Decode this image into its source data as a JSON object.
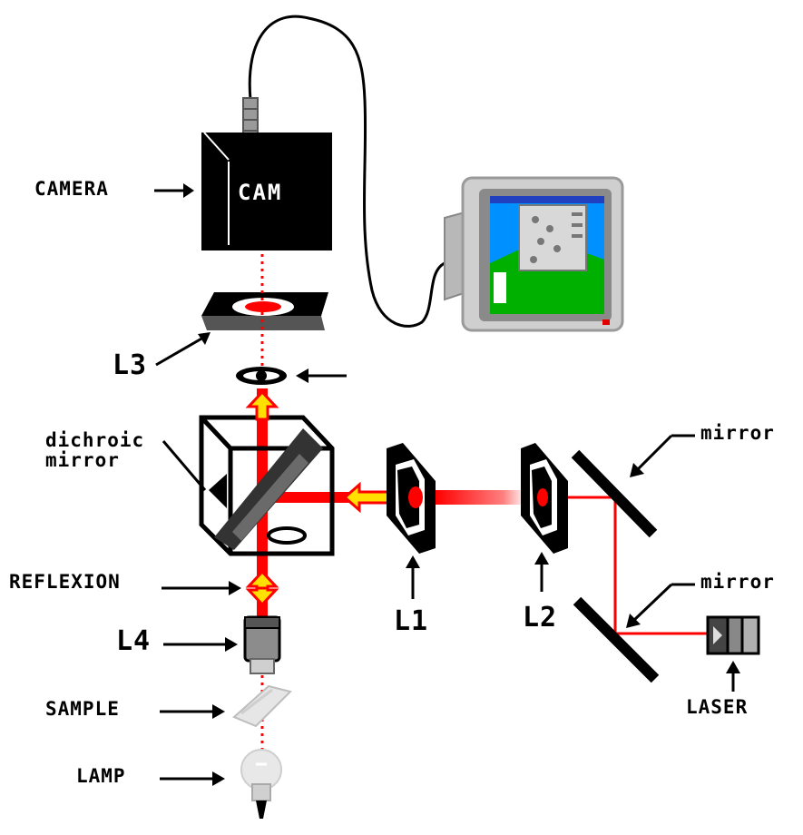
{
  "labels": {
    "camera": "CAMERA",
    "cam_face": "CAM",
    "l3": "L3",
    "dichroic_line1": "dichroic",
    "dichroic_line2": "mirror",
    "reflexion": "REFLEXION",
    "l4": "L4",
    "sample": "SAMPLE",
    "lamp": "LAMP",
    "l1": "L1",
    "l2": "L2",
    "mirror_top": "mirror",
    "mirror_bottom": "mirror",
    "laser": "LASER"
  },
  "colors": {
    "beam": "#ff0000",
    "arrow_fill": "#ffe000",
    "camera_body": "#000000",
    "monitor_case": "#c8c8c8",
    "monitor_screen_sky": "#0090ff",
    "monitor_screen_grass": "#00b000"
  }
}
